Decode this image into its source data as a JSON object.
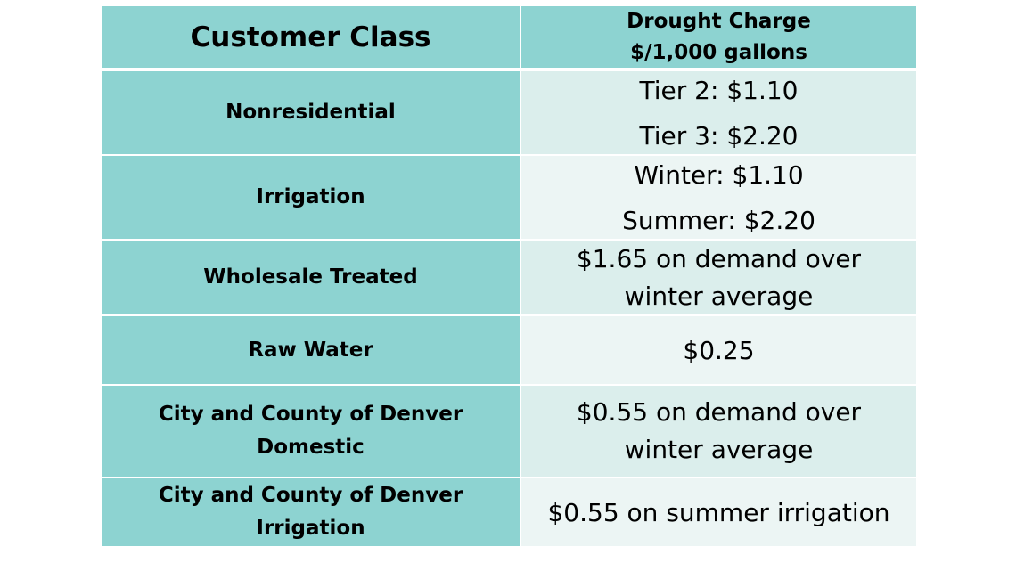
{
  "table": {
    "header": {
      "class_label": "Customer Class",
      "charge_label_line1": "Drought Charge",
      "charge_label_line2": "$/1,000 gallons"
    },
    "rows": [
      {
        "customer_class": [
          "Nonresidential"
        ],
        "charge": [
          "Tier 2: $1.10",
          "Tier 3: $2.20"
        ]
      },
      {
        "customer_class": [
          "Irrigation"
        ],
        "charge": [
          "Winter: $1.10",
          "Summer: $2.20"
        ]
      },
      {
        "customer_class": [
          "Wholesale Treated"
        ],
        "charge": [
          "$1.65 on demand over",
          "winter average"
        ]
      },
      {
        "customer_class": [
          "Raw Water"
        ],
        "charge": [
          "$0.25"
        ]
      },
      {
        "customer_class": [
          "City and County of Denver",
          "Domestic"
        ],
        "charge": [
          "$0.55 on demand over",
          "winter average"
        ]
      },
      {
        "customer_class": [
          "City and County of Denver",
          "Irrigation"
        ],
        "charge": [
          "$0.55 on summer irrigation"
        ]
      }
    ]
  },
  "colors": {
    "label_column": "#8dd3d1",
    "value_shade_a": "#dbeeec",
    "value_shade_b": "#ecf5f4"
  }
}
